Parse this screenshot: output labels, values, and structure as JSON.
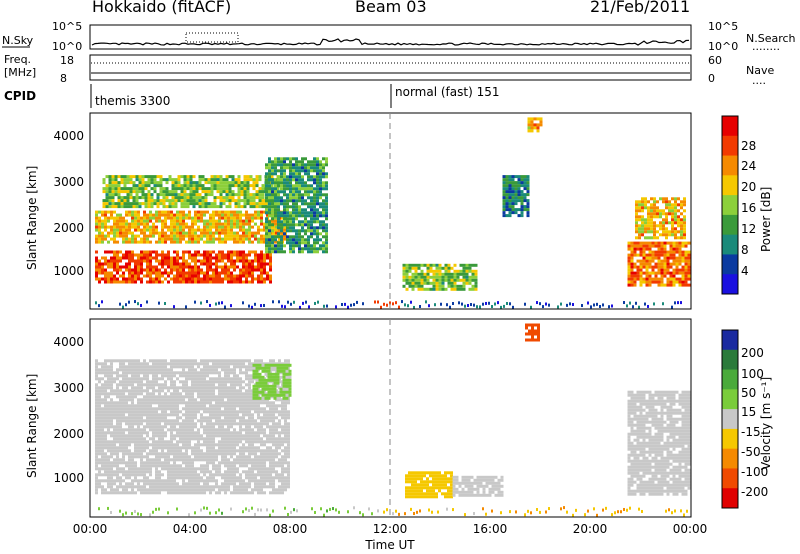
{
  "header": {
    "station": "Hokkaido (fitACF)",
    "beam": "Beam 03",
    "date": "21/Feb/2011"
  },
  "noise_panel": {
    "left_label": "N.Sky",
    "right_label": "N.Search",
    "left_ticks": [
      "10^5",
      "10^0"
    ],
    "right_ticks": [
      "10^5",
      "10^0"
    ],
    "left_dots": "",
    "right_dots": "........"
  },
  "freq_panel": {
    "left_label_line1": "Freq.",
    "left_label_line2": "[MHz]",
    "right_label": "Nave",
    "right_dots": "....",
    "left_ticks": [
      "18",
      "8"
    ],
    "right_ticks": [
      "60",
      "0"
    ]
  },
  "cpid_panel": {
    "label": "CPID",
    "modes": [
      {
        "name": "themis 3300",
        "start_hour": 0
      },
      {
        "name": "normal (fast) 151",
        "start_hour": 12
      }
    ]
  },
  "power_colorbar": {
    "label": "Power [dB]",
    "ticks": [
      "28",
      "24",
      "20",
      "16",
      "12",
      "8",
      "4"
    ],
    "colors": [
      "#e60000",
      "#f23a00",
      "#f58a00",
      "#f5c800",
      "#8ccf3a",
      "#3a9a3a",
      "#1a8a7a",
      "#0a3aa0",
      "#1a10e0"
    ]
  },
  "velocity_colorbar": {
    "label": "Velocity [m s⁻¹]",
    "ticks": [
      "200",
      "100",
      "50",
      "15",
      "-15",
      "-50",
      "-100",
      "-200"
    ],
    "colors": [
      "#1a2aa0",
      "#2a7a3a",
      "#4aaa3a",
      "#7acc3a",
      "#c8c8c8",
      "#f5c800",
      "#f58a00",
      "#f04a00",
      "#e00000"
    ]
  },
  "x_axis": {
    "label": "Time UT",
    "ticks": [
      "00:00",
      "04:00",
      "08:00",
      "12:00",
      "16:00",
      "20:00",
      "00:00"
    ]
  },
  "y_axis": {
    "label": "Slant Range [km]",
    "ticks": [
      "4000",
      "3000",
      "2000",
      "1000"
    ]
  },
  "chart_data": [
    {
      "type": "heatmap",
      "title": "Power",
      "xlabel": "",
      "ylabel": "Slant Range [km]",
      "xlim_hours": [
        0,
        24
      ],
      "ylim_km": [
        180,
        4600
      ],
      "colorbar": "Power [dB]",
      "colorbar_range": [
        0,
        30
      ],
      "regions": [
        {
          "hours": [
            0.2,
            7.2
          ],
          "range_km": [
            800,
            1500
          ],
          "level_db": 26
        },
        {
          "hours": [
            0.2,
            7.8
          ],
          "range_km": [
            1700,
            2400
          ],
          "level_db": 20
        },
        {
          "hours": [
            0.5,
            7.5
          ],
          "range_km": [
            2500,
            3200
          ],
          "level_db": 14
        },
        {
          "hours": [
            7.0,
            9.5
          ],
          "range_km": [
            1500,
            3600
          ],
          "level_db": 10
        },
        {
          "hours": [
            12.5,
            15.5
          ],
          "range_km": [
            650,
            1200
          ],
          "level_db": 14
        },
        {
          "hours": [
            16.5,
            17.5
          ],
          "range_km": [
            2300,
            3200
          ],
          "level_db": 8
        },
        {
          "hours": [
            17.5,
            18.0
          ],
          "range_km": [
            4200,
            4500
          ],
          "level_db": 20
        },
        {
          "hours": [
            21.5,
            24.0
          ],
          "range_km": [
            700,
            1700
          ],
          "level_db": 24
        },
        {
          "hours": [
            21.8,
            23.8
          ],
          "range_km": [
            1800,
            2700
          ],
          "level_db": 20
        }
      ]
    },
    {
      "type": "heatmap",
      "title": "Velocity",
      "xlabel": "Time UT",
      "ylabel": "Slant Range [km]",
      "xlim_hours": [
        0,
        24
      ],
      "ylim_km": [
        180,
        4600
      ],
      "colorbar": "Velocity [m s⁻¹]",
      "colorbar_range": [
        -250,
        250
      ],
      "regions": [
        {
          "hours": [
            0.2,
            8.0
          ],
          "range_km": [
            700,
            3700
          ],
          "velocity_ms": 0
        },
        {
          "hours": [
            6.5,
            8.0
          ],
          "range_km": [
            2800,
            3600
          ],
          "velocity_ms": 40
        },
        {
          "hours": [
            12.6,
            14.5
          ],
          "range_km": [
            650,
            1200
          ],
          "velocity_ms": -60
        },
        {
          "hours": [
            14.5,
            16.5
          ],
          "range_km": [
            650,
            1100
          ],
          "velocity_ms": 20
        },
        {
          "hours": [
            17.4,
            18.0
          ],
          "range_km": [
            4100,
            4500
          ],
          "velocity_ms": -200
        },
        {
          "hours": [
            21.5,
            24.0
          ],
          "range_km": [
            700,
            3000
          ],
          "velocity_ms": 0
        }
      ]
    }
  ]
}
